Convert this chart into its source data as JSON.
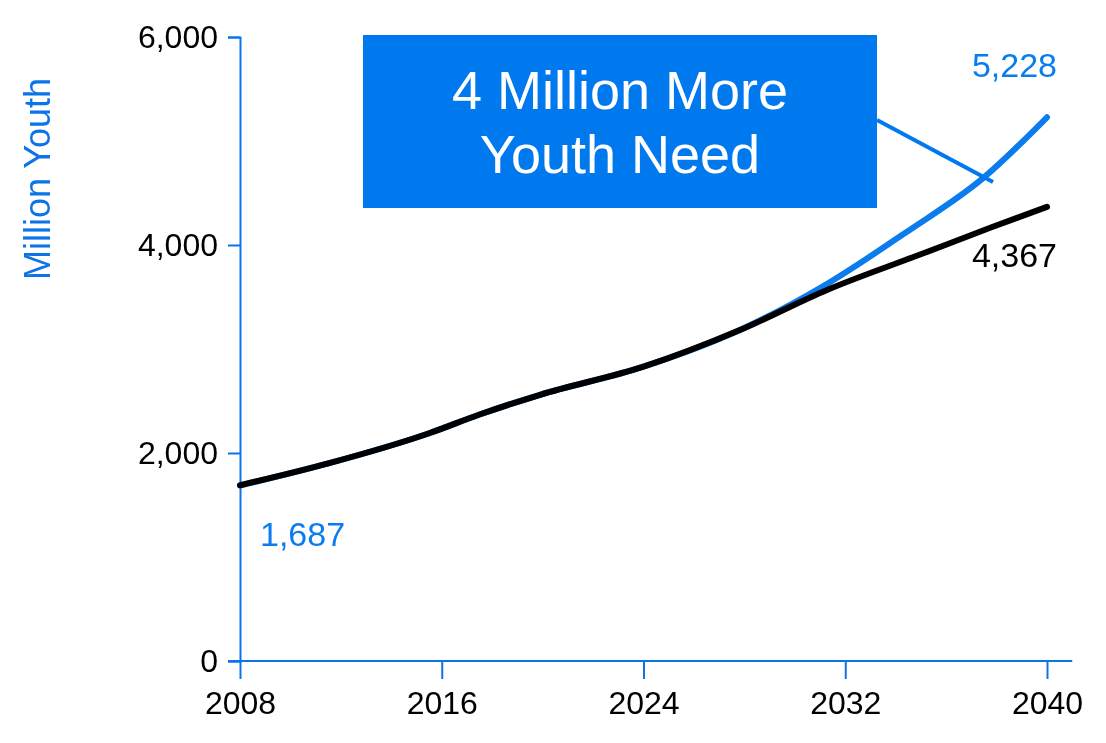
{
  "chart_data": {
    "type": "line",
    "ylabel": "Million Youth",
    "xlim": [
      2008,
      2041
    ],
    "xticks": [
      2008,
      2016,
      2024,
      2032,
      2040
    ],
    "ylim": [
      0,
      6000
    ],
    "yticks": [
      0,
      {
        "value": 2000,
        "label": "2,000"
      },
      {
        "value": 4000,
        "label": "4,000"
      },
      {
        "value": 6000,
        "label": "6,000"
      }
    ],
    "grid": false,
    "marker": "none",
    "line_style": "solid",
    "series": [
      {
        "color": "#0a7cee",
        "x": [
          2008,
          2011.5,
          2015.5,
          2017.5,
          2019.9,
          2024,
          2027.8,
          2031.1,
          2034.4,
          2037.5,
          2040
        ],
        "values": [
          1687,
          1900,
          2190,
          2370,
          2560,
          2830,
          3180,
          3600,
          4120,
          4650,
          5228
        ],
        "value_labels": [
          "1,687",
          null,
          null,
          null,
          null,
          null,
          null,
          null,
          null,
          null,
          "5,228"
        ]
      },
      {
        "color": "#000000",
        "x": [
          2008,
          2011.5,
          2015.5,
          2017.5,
          2019.9,
          2024,
          2027.8,
          2031.3,
          2035.1,
          2037.8,
          2040
        ],
        "values": [
          1690,
          1900,
          2190,
          2370,
          2560,
          2830,
          3180,
          3570,
          3920,
          4170,
          4367
        ],
        "value_labels": [
          null,
          null,
          null,
          null,
          null,
          null,
          null,
          null,
          null,
          null,
          "4,367"
        ]
      }
    ],
    "annotations": [
      "4 Million More Youth Need"
    ]
  }
}
